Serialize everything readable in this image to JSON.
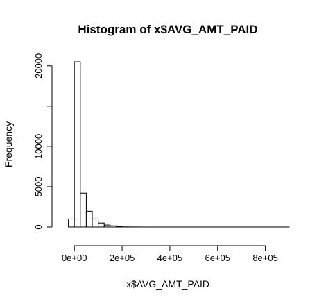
{
  "chart_data": {
    "type": "bar",
    "title": "Histogram of x$AVG_AMT_PAID",
    "xlabel": "x$AVG_AMT_PAID",
    "ylabel": "Frequency",
    "x_tick_labels": [
      "0e+00",
      "2e+05",
      "4e+05",
      "6e+05",
      "8e+05"
    ],
    "x_tick_values": [
      0,
      200000,
      400000,
      600000,
      800000
    ],
    "y_tick_labels": [
      "0",
      "5000",
      "10000",
      "20000"
    ],
    "y_tick_values": [
      0,
      5000,
      10000,
      20000
    ],
    "xlim": [
      -50000,
      900000
    ],
    "ylim": [
      0,
      20500
    ],
    "bins": [
      {
        "x0": -50000,
        "x1": -25000,
        "count": 0
      },
      {
        "x0": -25000,
        "x1": 0,
        "count": 1000
      },
      {
        "x0": 0,
        "x1": 25000,
        "count": 20500
      },
      {
        "x0": 25000,
        "x1": 50000,
        "count": 4200
      },
      {
        "x0": 50000,
        "x1": 75000,
        "count": 1950
      },
      {
        "x0": 75000,
        "x1": 100000,
        "count": 1000
      },
      {
        "x0": 100000,
        "x1": 125000,
        "count": 500
      },
      {
        "x0": 125000,
        "x1": 150000,
        "count": 250
      },
      {
        "x0": 150000,
        "x1": 175000,
        "count": 150
      },
      {
        "x0": 175000,
        "x1": 200000,
        "count": 60
      },
      {
        "x0": 200000,
        "x1": 225000,
        "count": 20
      },
      {
        "x0": 225000,
        "x1": 250000,
        "count": 10
      },
      {
        "x0": 250000,
        "x1": 275000,
        "count": 5
      },
      {
        "x0": 275000,
        "x1": 300000,
        "count": 3
      },
      {
        "x0": 300000,
        "x1": 325000,
        "count": 2
      },
      {
        "x0": 325000,
        "x1": 350000,
        "count": 1
      },
      {
        "x0": 350000,
        "x1": 375000,
        "count": 1
      },
      {
        "x0": 375000,
        "x1": 400000,
        "count": 1
      },
      {
        "x0": 400000,
        "x1": 425000,
        "count": 1
      },
      {
        "x0": 425000,
        "x1": 450000,
        "count": 1
      },
      {
        "x0": 450000,
        "x1": 475000,
        "count": 1
      },
      {
        "x0": 475000,
        "x1": 500000,
        "count": 1
      },
      {
        "x0": 500000,
        "x1": 525000,
        "count": 1
      },
      {
        "x0": 525000,
        "x1": 550000,
        "count": 1
      },
      {
        "x0": 550000,
        "x1": 575000,
        "count": 1
      },
      {
        "x0": 575000,
        "x1": 600000,
        "count": 1
      },
      {
        "x0": 600000,
        "x1": 625000,
        "count": 1
      },
      {
        "x0": 625000,
        "x1": 650000,
        "count": 1
      },
      {
        "x0": 650000,
        "x1": 675000,
        "count": 1
      },
      {
        "x0": 675000,
        "x1": 700000,
        "count": 1
      },
      {
        "x0": 700000,
        "x1": 725000,
        "count": 1
      },
      {
        "x0": 725000,
        "x1": 750000,
        "count": 1
      },
      {
        "x0": 750000,
        "x1": 775000,
        "count": 1
      },
      {
        "x0": 775000,
        "x1": 800000,
        "count": 1
      },
      {
        "x0": 800000,
        "x1": 825000,
        "count": 1
      },
      {
        "x0": 825000,
        "x1": 850000,
        "count": 1
      },
      {
        "x0": 850000,
        "x1": 875000,
        "count": 1
      },
      {
        "x0": 875000,
        "x1": 900000,
        "count": 1
      }
    ],
    "bar_fill": "#ffffff",
    "bar_stroke": "#000000",
    "grid": false,
    "legend": "none"
  }
}
